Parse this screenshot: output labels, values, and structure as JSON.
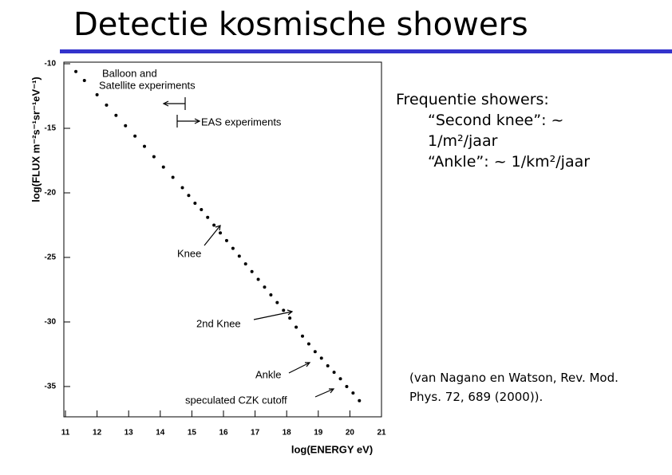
{
  "title": "Detectie kosmische showers",
  "bullets": [
    "Frequentie showers:",
    "“Second knee”: ~ 1/m²/jaar",
    "“Ankle”: ~ 1/km²/jaar"
  ],
  "citation": "(van Nagano en Watson, Rev. Mod. Phys. 72, 689 (2000)).",
  "chart_data": {
    "type": "scatter",
    "xlabel": "log(ENERGY  eV)",
    "ylabel": "log(FLUX  m⁻²s⁻¹sr⁻¹eV⁻¹)",
    "annotations": [
      "Balloon and",
      "Satellite experiments",
      "EAS experiments",
      "Knee",
      "2nd Knee",
      "Ankle",
      "speculated CZK cutoff"
    ],
    "color": "#000000",
    "xlim": [
      11,
      21
    ],
    "xticks": [
      11,
      12,
      13,
      14,
      15,
      16,
      17,
      18,
      19,
      20,
      21
    ],
    "ylim": [
      -37.7,
      -10
    ],
    "yticks": [
      -10,
      -15,
      -20,
      -25,
      -30,
      -35
    ],
    "x": [
      11.33,
      11.6,
      12.0,
      12.3,
      12.6,
      12.9,
      13.2,
      13.5,
      13.8,
      14.1,
      14.4,
      14.7,
      14.9,
      15.1,
      15.3,
      15.5,
      15.7,
      15.9,
      16.1,
      16.3,
      16.5,
      16.7,
      16.9,
      17.1,
      17.3,
      17.5,
      17.7,
      17.9,
      18.1,
      18.3,
      18.5,
      18.7,
      18.9,
      19.1,
      19.3,
      19.5,
      19.7,
      19.9,
      20.1,
      20.3
    ],
    "values": [
      -10.6,
      -11.3,
      -12.4,
      -13.2,
      -14.0,
      -14.8,
      -15.6,
      -16.4,
      -17.2,
      -18.0,
      -18.8,
      -19.6,
      -20.2,
      -20.8,
      -21.3,
      -21.9,
      -22.5,
      -23.1,
      -23.7,
      -24.3,
      -24.9,
      -25.5,
      -26.1,
      -26.7,
      -27.3,
      -27.9,
      -28.5,
      -29.1,
      -29.7,
      -30.4,
      -31.1,
      -31.7,
      -32.3,
      -32.8,
      -33.4,
      -33.9,
      -34.4,
      -35.0,
      -35.5,
      -36.1
    ]
  }
}
